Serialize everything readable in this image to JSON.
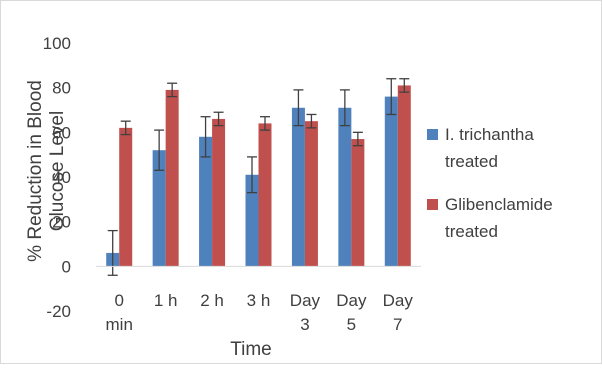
{
  "chart_data": {
    "type": "bar",
    "title": "",
    "xlabel": "Time",
    "ylabel": "% Reduction in Blood Glucose Level",
    "ylim": [
      -20,
      100
    ],
    "yticks": [
      -20,
      0,
      20,
      40,
      60,
      80,
      100
    ],
    "grid": false,
    "legend_position": "right",
    "categories": [
      [
        "0",
        "min"
      ],
      [
        "1 h"
      ],
      [
        "2 h"
      ],
      [
        "3 h"
      ],
      [
        "Day",
        "3"
      ],
      [
        "Day",
        "5"
      ],
      [
        "Day",
        "7"
      ]
    ],
    "series": [
      {
        "name_lines": [
          "I. trichantha",
          "treated"
        ],
        "color": "#4f81bd",
        "values": [
          6,
          52,
          58,
          41,
          71,
          71,
          76
        ],
        "errors": [
          10,
          9,
          9,
          8,
          8,
          8,
          8
        ]
      },
      {
        "name_lines": [
          "Glibenclamide",
          "treated"
        ],
        "color": "#c0504d",
        "values": [
          62,
          79,
          66,
          64,
          65,
          57,
          81
        ],
        "errors": [
          3,
          3,
          3,
          3,
          3,
          3,
          3
        ]
      }
    ]
  }
}
